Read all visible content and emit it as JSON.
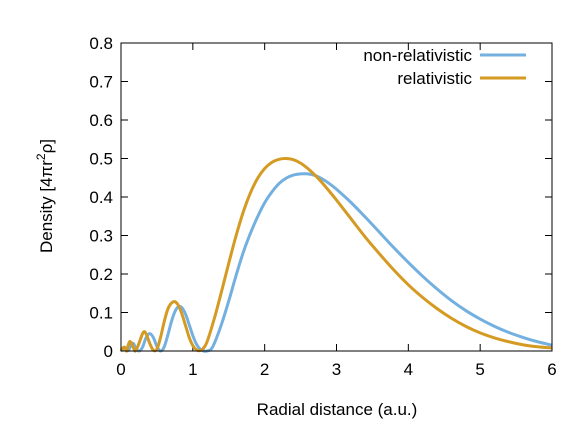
{
  "chart_data": {
    "type": "line",
    "xlabel": "Radial distance (a.u.)",
    "ylabel": "Density [4πr²ρ]",
    "ylabel_parts": [
      "Density [4πr",
      "2",
      "ρ]"
    ],
    "xlim": [
      0,
      6
    ],
    "ylim": [
      0,
      0.8
    ],
    "x_ticks": [
      0,
      1,
      2,
      3,
      4,
      5,
      6
    ],
    "x_tick_labels": [
      "0",
      "1",
      "2",
      "3",
      "4",
      "5",
      "6"
    ],
    "y_ticks": [
      0,
      0.1,
      0.2,
      0.3,
      0.4,
      0.5,
      0.6,
      0.7,
      0.8
    ],
    "y_tick_labels": [
      "0",
      "0.1",
      "0.2",
      "0.3",
      "0.4",
      "0.5",
      "0.6",
      "0.7",
      "0.8"
    ],
    "grid": false,
    "legend_position": "top-right",
    "series": [
      {
        "name": "non-relativistic",
        "color": "#73b0e0",
        "x": [
          0,
          0.03,
          0.05,
          0.07,
          0.1,
          0.13,
          0.15,
          0.18,
          0.2,
          0.25,
          0.3,
          0.35,
          0.4,
          0.45,
          0.5,
          0.55,
          0.6,
          0.65,
          0.7,
          0.75,
          0.8,
          0.85,
          0.9,
          0.95,
          1.0,
          1.05,
          1.1,
          1.15,
          1.2,
          1.25,
          1.3,
          1.4,
          1.5,
          1.6,
          1.7,
          1.8,
          1.9,
          2.0,
          2.1,
          2.2,
          2.3,
          2.4,
          2.5,
          2.6,
          2.7,
          2.8,
          2.9,
          3.0,
          3.2,
          3.4,
          3.6,
          3.8,
          4.0,
          4.2,
          4.4,
          4.6,
          4.8,
          5.0,
          5.2,
          5.4,
          5.6,
          5.8,
          6.0
        ],
        "y": [
          0,
          0.006,
          0.01,
          0.006,
          0.001,
          0.012,
          0.02,
          0.018,
          0.008,
          0.0,
          0.01,
          0.035,
          0.045,
          0.035,
          0.012,
          0.0,
          0.01,
          0.04,
          0.075,
          0.102,
          0.115,
          0.112,
          0.095,
          0.068,
          0.04,
          0.018,
          0.005,
          0.0,
          0.0,
          0.004,
          0.02,
          0.07,
          0.13,
          0.195,
          0.255,
          0.305,
          0.348,
          0.385,
          0.413,
          0.435,
          0.449,
          0.457,
          0.46,
          0.46,
          0.456,
          0.447,
          0.435,
          0.42,
          0.386,
          0.348,
          0.308,
          0.268,
          0.23,
          0.194,
          0.161,
          0.131,
          0.105,
          0.083,
          0.064,
          0.048,
          0.035,
          0.024,
          0.015
        ]
      },
      {
        "name": "relativistic",
        "color": "#d49a22",
        "x": [
          0,
          0.02,
          0.04,
          0.06,
          0.08,
          0.1,
          0.12,
          0.14,
          0.17,
          0.2,
          0.25,
          0.3,
          0.33,
          0.36,
          0.4,
          0.45,
          0.5,
          0.55,
          0.6,
          0.65,
          0.7,
          0.75,
          0.8,
          0.85,
          0.9,
          0.95,
          1.0,
          1.05,
          1.1,
          1.15,
          1.2,
          1.3,
          1.4,
          1.5,
          1.6,
          1.7,
          1.8,
          1.9,
          2.0,
          2.1,
          2.2,
          2.3,
          2.4,
          2.5,
          2.6,
          2.7,
          2.8,
          2.9,
          3.0,
          3.2,
          3.4,
          3.6,
          3.8,
          4.0,
          4.2,
          4.4,
          4.6,
          4.8,
          5.0,
          5.2,
          5.4,
          5.6,
          5.8,
          6.0
        ],
        "y": [
          0,
          0.006,
          0.01,
          0.006,
          0.0,
          0.015,
          0.024,
          0.022,
          0.01,
          0.0,
          0.02,
          0.045,
          0.05,
          0.04,
          0.02,
          0.002,
          0.005,
          0.035,
          0.075,
          0.108,
          0.124,
          0.128,
          0.118,
          0.095,
          0.065,
          0.035,
          0.014,
          0.003,
          0.001,
          0.008,
          0.025,
          0.085,
          0.155,
          0.228,
          0.298,
          0.36,
          0.41,
          0.448,
          0.474,
          0.49,
          0.498,
          0.5,
          0.497,
          0.488,
          0.474,
          0.457,
          0.437,
          0.415,
          0.392,
          0.344,
          0.296,
          0.252,
          0.21,
          0.172,
          0.139,
          0.11,
          0.085,
          0.064,
          0.047,
          0.034,
          0.024,
          0.016,
          0.011,
          0.008
        ]
      }
    ]
  }
}
